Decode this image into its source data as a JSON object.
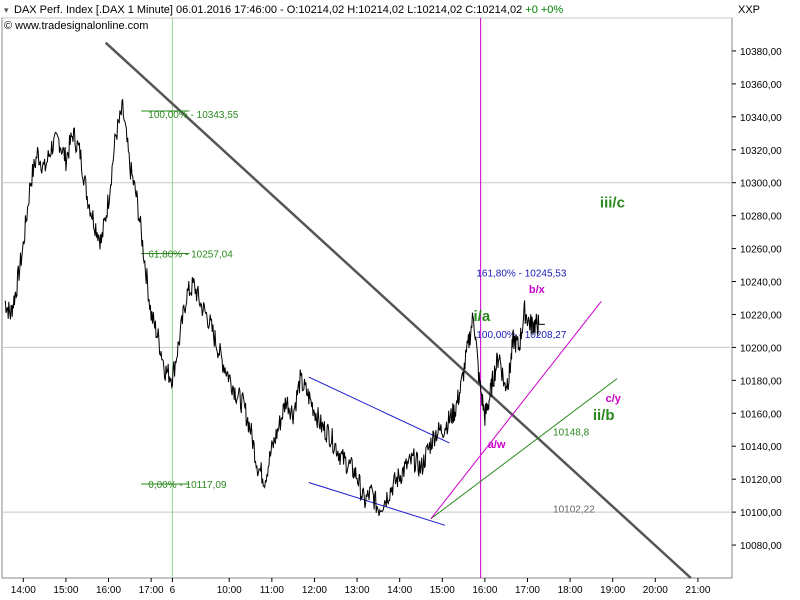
{
  "header": {
    "expand_glyph": "▾",
    "title_prefix": "DAX Perf. Index [.DAX 1 Minute] 06.01.2016 17:46:00 - O:10214,02 H:10214,02 L:10214,02 C:10214,02",
    "change": "+0 +0%",
    "source": "© www.tradesignalonline.com"
  },
  "symbol": "XXP",
  "colors": {
    "price": "#000000",
    "trendline": "#555555",
    "wave_green": "#2a8a1e",
    "wave_magenta": "#cc00cc",
    "fib_blue": "#1a1ab8",
    "channel_blue": "#1a1acc",
    "grid": "#c8c8c8",
    "marker_green": "#66cc66"
  },
  "chart_data": {
    "type": "line",
    "title": "DAX Perf. Index [.DAX 1 Minute]",
    "xlabel": "",
    "ylabel": "",
    "ylim": [
      10060,
      10400
    ],
    "yticks": [
      "10080,00",
      "10100,00",
      "10120,00",
      "10140,00",
      "10160,00",
      "10180,00",
      "10200,00",
      "10220,00",
      "10240,00",
      "10260,00",
      "10280,00",
      "10300,00",
      "10320,00",
      "10340,00",
      "10360,00",
      "10380,00"
    ],
    "ytick_values": [
      10080,
      10100,
      10120,
      10140,
      10160,
      10180,
      10200,
      10220,
      10240,
      10260,
      10280,
      10300,
      10320,
      10340,
      10360,
      10380
    ],
    "xticks": [
      "14:00",
      "15:00",
      "16:00",
      "17:00",
      "6",
      "10:00",
      "11:00",
      "12:00",
      "13:00",
      "14:00",
      "15:00",
      "16:00",
      "17:00",
      "18:00",
      "19:00",
      "20:00",
      "21:00"
    ],
    "xtick_pos": [
      0.5,
      3.5,
      6.5,
      9.5,
      11,
      15,
      18,
      21,
      24,
      27,
      30,
      33,
      36,
      39,
      42,
      45,
      48
    ],
    "x_range": [
      -1,
      50.4
    ],
    "gridlines_y": [
      10100,
      10200,
      10300,
      10400
    ],
    "gridlines_x": [
      11
    ],
    "series": [
      {
        "x": [
          -0.8,
          -0.4,
          0,
          0.5,
          1,
          1.5,
          2,
          2.5,
          3,
          3.5,
          4,
          4.5,
          5,
          5.5,
          6,
          6.5,
          7,
          7.5,
          8,
          8.5,
          9,
          9.5,
          10,
          10.5,
          11,
          11.5,
          12,
          12.5,
          13,
          13.5,
          14,
          14.5,
          15,
          15.5,
          16,
          16.5,
          17,
          17.5,
          18,
          18.5,
          19,
          19.5,
          20,
          20.5,
          21,
          21.5,
          22,
          22.5,
          23,
          23.5,
          24,
          24.5,
          25,
          25.5,
          26,
          26.5,
          27,
          27.5,
          28,
          28.5,
          29,
          29.5,
          30,
          30.5,
          30.9,
          31.3,
          31.8,
          32.2,
          32.6,
          33,
          33.3,
          33.6,
          34,
          34.4,
          34.7,
          35,
          35.4,
          35.8,
          36.2,
          36.5,
          36.8
        ],
        "values": [
          10228,
          10220,
          10235,
          10262,
          10300,
          10318,
          10308,
          10322,
          10326,
          10314,
          10330,
          10318,
          10292,
          10276,
          10264,
          10290,
          10328,
          10345,
          10310,
          10290,
          10256,
          10220,
          10206,
          10186,
          10182,
          10205,
          10232,
          10238,
          10226,
          10218,
          10205,
          10192,
          10182,
          10172,
          10165,
          10150,
          10128,
          10120,
          10138,
          10152,
          10168,
          10160,
          10180,
          10172,
          10162,
          10152,
          10148,
          10140,
          10132,
          10128,
          10122,
          10106,
          10112,
          10102,
          10108,
          10116,
          10122,
          10128,
          10132,
          10126,
          10138,
          10148,
          10150,
          10156,
          10162,
          10175,
          10200,
          10220,
          10180,
          10158,
          10168,
          10182,
          10196,
          10176,
          10182,
          10205,
          10200,
          10222,
          10214,
          10214,
          10214
        ]
      }
    ],
    "annotations": {
      "fib_levels": [
        {
          "label": "100,00% - 10343,55",
          "value": 10343.55
        },
        {
          "label": "61,80% - 10257,04",
          "value": 10257.04
        },
        {
          "label": "0,00% - 10117,09",
          "value": 10117.09
        },
        {
          "label": "161,80% - 10245,53",
          "value": 10245.53
        },
        {
          "label": "100,00% - 10208,27",
          "value": 10208.27
        }
      ],
      "price_labels": [
        {
          "label": "10148,8",
          "value": 10148.8
        },
        {
          "label": "10102,22",
          "value": 10102.22
        }
      ],
      "waves": {
        "iii_c": "iii/c",
        "i_a": "i/a",
        "ii_b": "ii/b",
        "b_x": "b/x",
        "a_w": "a/w",
        "c_y": "c/y"
      }
    }
  }
}
